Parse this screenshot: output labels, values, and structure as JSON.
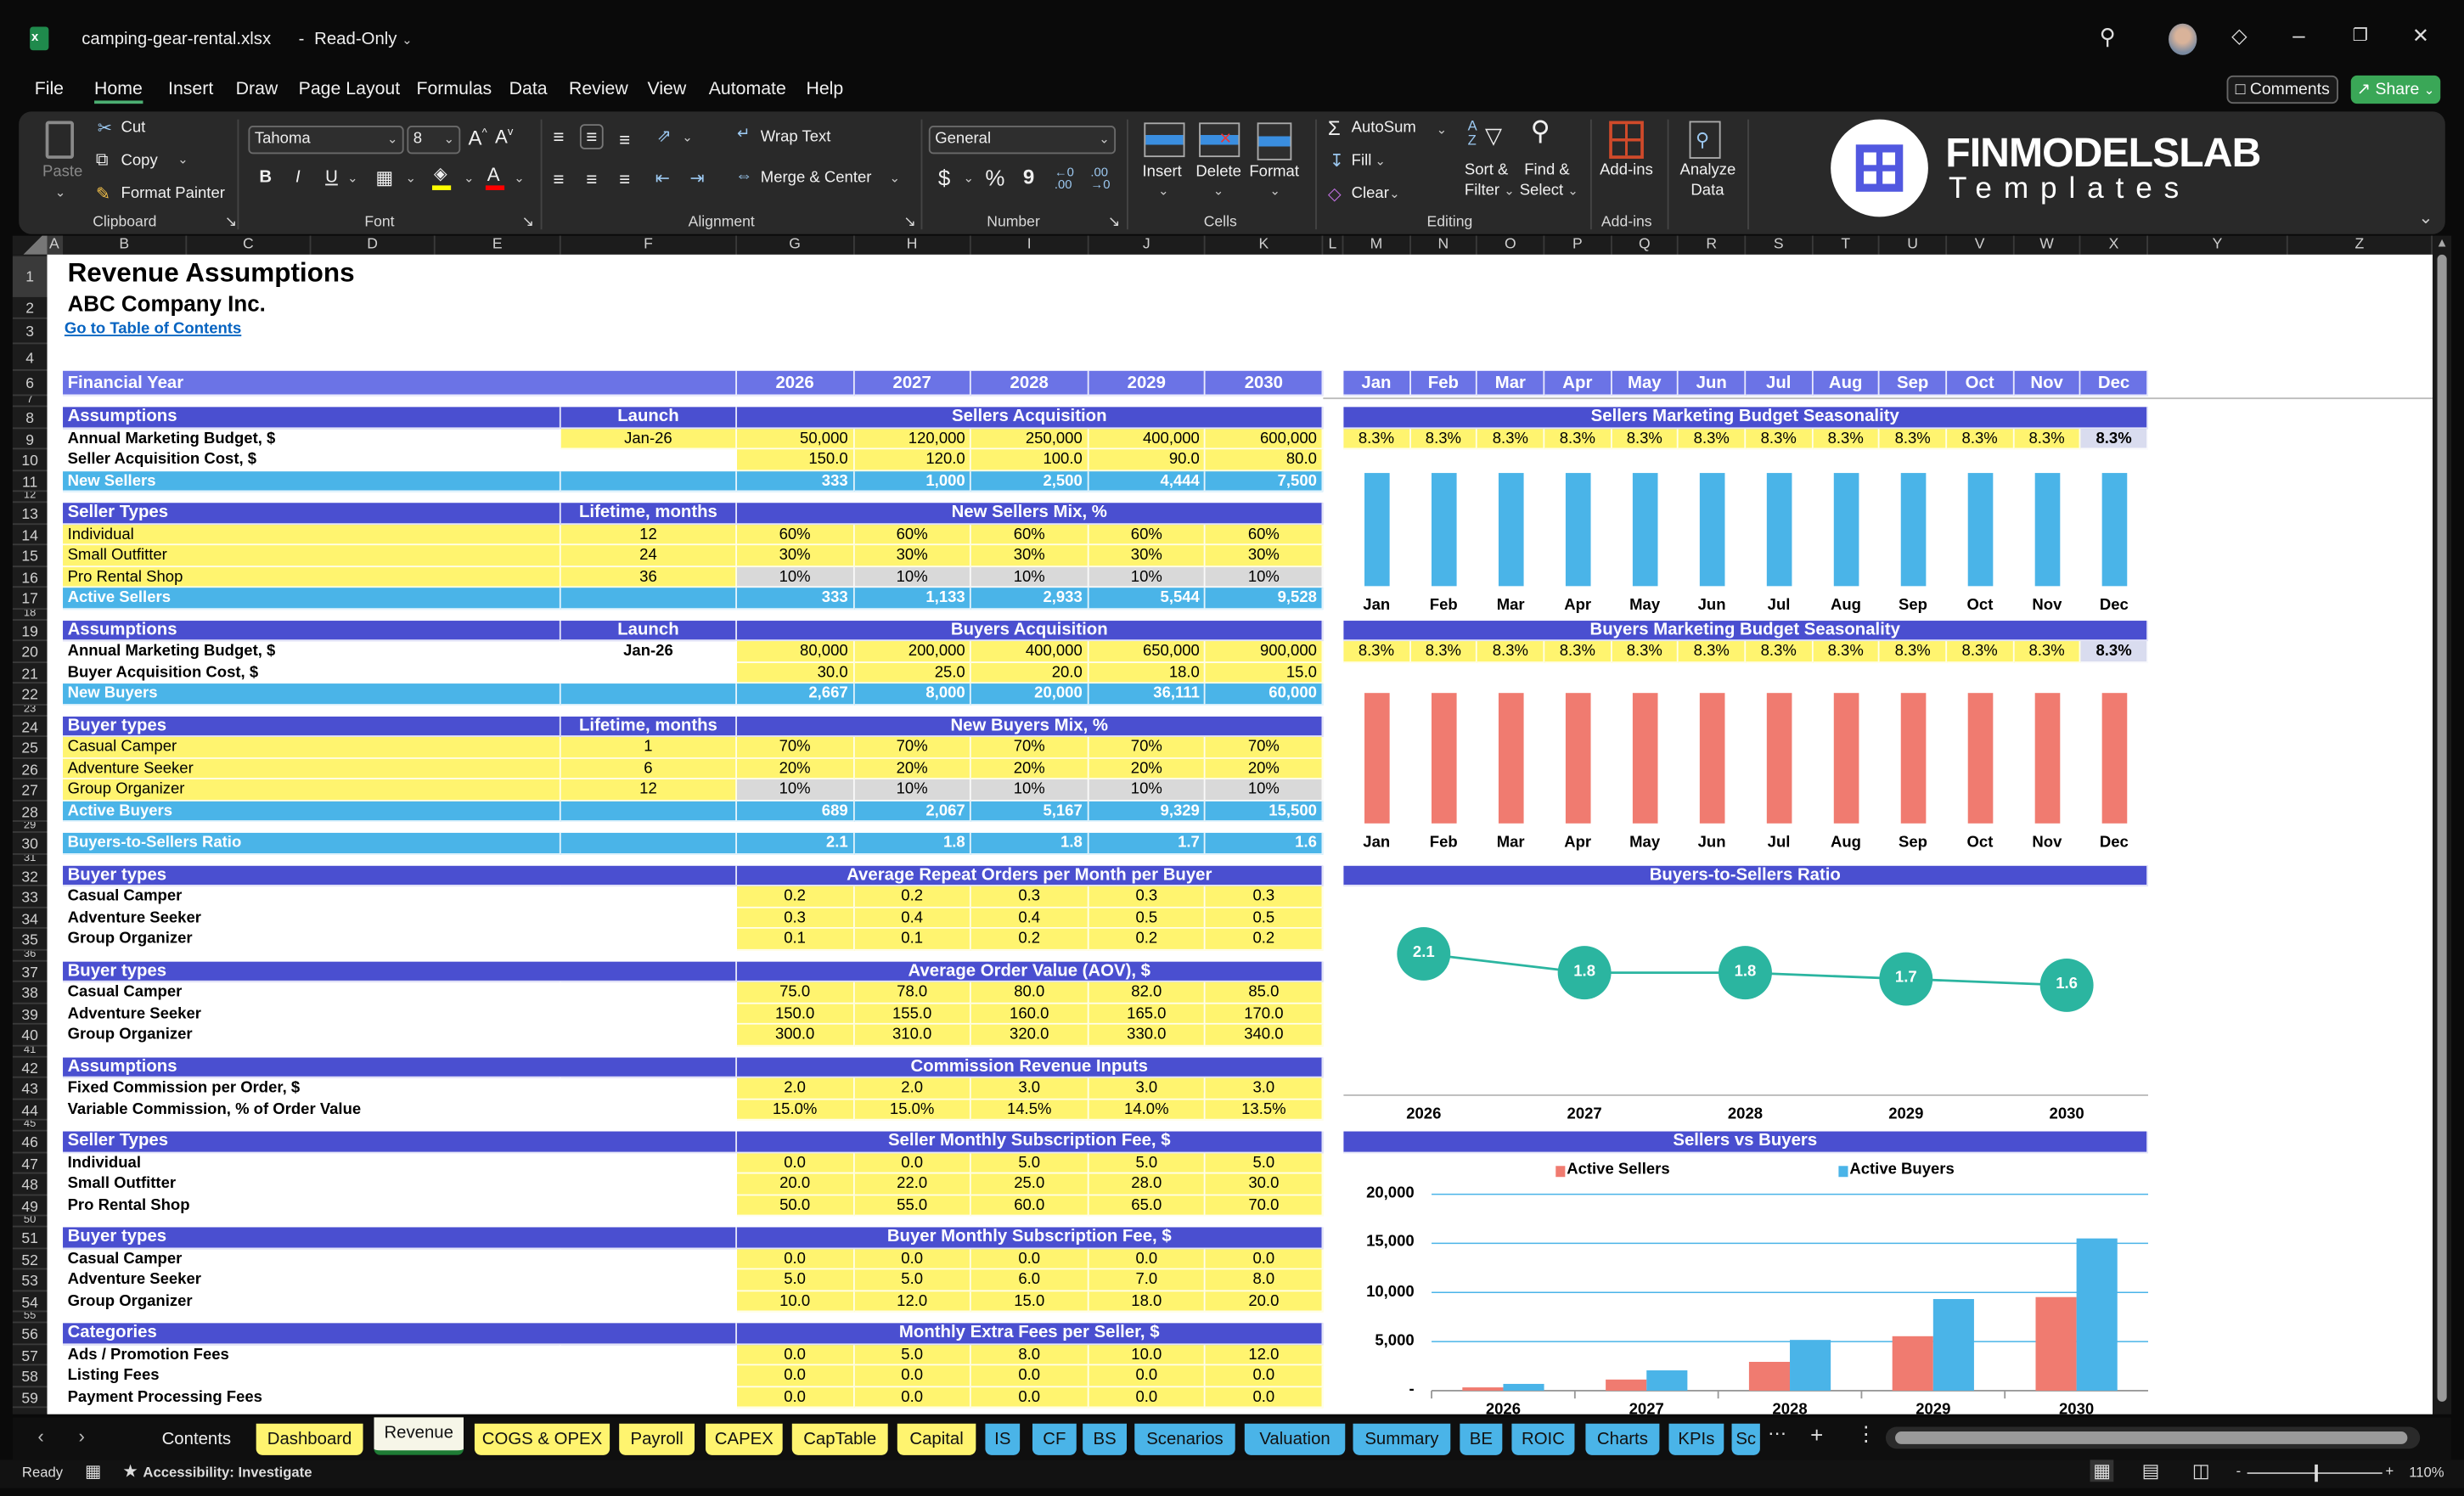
{
  "title_bar": {
    "file_name": "camping-gear-rental.xlsx",
    "separator": "-",
    "mode": "Read-Only"
  },
  "menu": [
    "File",
    "Home",
    "Insert",
    "Draw",
    "Page Layout",
    "Formulas",
    "Data",
    "Review",
    "View",
    "Automate",
    "Help"
  ],
  "active_menu": "Home",
  "actions": {
    "comments": "Comments",
    "share": "Share"
  },
  "ribbon": {
    "clipboard": {
      "paste": "Paste",
      "cut": "Cut",
      "copy": "Copy",
      "format_painter": "Format Painter",
      "group": "Clipboard"
    },
    "font": {
      "name": "Tahoma",
      "size": "8",
      "bold": "B",
      "italic": "I",
      "underline": "U",
      "group": "Font",
      "fill_color": "#ffff00",
      "font_color": "#ff0000"
    },
    "alignment": {
      "wrap_text": "Wrap Text",
      "merge_center": "Merge & Center",
      "group": "Alignment"
    },
    "number": {
      "format": "General",
      "currency": "$",
      "percent": "%",
      "comma": "9",
      "group": "Number"
    },
    "cells": {
      "insert": "Insert",
      "delete": "Delete",
      "format": "Format",
      "group": "Cells"
    },
    "editing": {
      "autosum": "AutoSum",
      "fill": "Fill",
      "clear": "Clear",
      "sort_filter_1": "Sort &",
      "sort_filter_2": "Filter",
      "find_select_1": "Find &",
      "find_select_2": "Select",
      "group": "Editing"
    },
    "addins": {
      "label": "Add-ins",
      "group": "Add-ins"
    },
    "analyze": {
      "line1": "Analyze",
      "line2": "Data"
    },
    "logo": {
      "brand": "FINMODELSLAB",
      "sub": "Templates"
    }
  },
  "columns": [
    "A",
    "B",
    "C",
    "D",
    "E",
    "F",
    "G",
    "H",
    "I",
    "J",
    "K",
    "L",
    "M",
    "N",
    "O",
    "P",
    "Q",
    "R",
    "S",
    "T",
    "U",
    "V",
    "W",
    "X",
    "Y",
    "Z"
  ],
  "row_numbers": [
    1,
    2,
    3,
    4,
    6,
    7,
    8,
    9,
    10,
    11,
    12,
    13,
    14,
    15,
    16,
    17,
    18,
    19,
    20,
    21,
    22,
    23,
    24,
    25,
    26,
    27,
    28,
    29,
    30,
    31,
    32,
    33,
    34,
    35,
    36,
    37,
    38,
    39,
    40,
    41,
    42,
    43,
    44,
    45,
    46,
    47,
    48,
    49,
    50,
    51,
    52,
    53,
    54,
    55,
    56,
    57,
    58,
    59
  ],
  "sheet": {
    "title": "Revenue Assumptions",
    "company": "ABC Company Inc.",
    "toc_link": "Go to Table of Contents",
    "financial_year": {
      "label": "Financial Year",
      "years": [
        "2026",
        "2027",
        "2028",
        "2029",
        "2030"
      ]
    },
    "months": [
      "Jan",
      "Feb",
      "Mar",
      "Apr",
      "May",
      "Jun",
      "Jul",
      "Aug",
      "Sep",
      "Oct",
      "Nov",
      "Dec"
    ],
    "sections": [
      {
        "row": 8,
        "label": "Assumptions",
        "launch": "Launch",
        "title": "Sellers Acquisition",
        "rows": [
          {
            "kind": "launch_input",
            "label": "Annual Marketing Budget, $",
            "launch": "Jan-26",
            "values": [
              "50,000",
              "120,000",
              "250,000",
              "400,000",
              "600,000"
            ]
          },
          {
            "kind": "input",
            "label": "Seller Acquisition Cost, $",
            "values": [
              "150.0",
              "120.0",
              "100.0",
              "90.0",
              "80.0"
            ]
          },
          {
            "kind": "total",
            "label": "New Sellers",
            "values": [
              "333",
              "1,000",
              "2,500",
              "4,444",
              "7,500"
            ]
          }
        ]
      },
      {
        "row": 13,
        "label": "Seller Types",
        "launch": "Lifetime, months",
        "title": "New Sellers Mix, %",
        "rows": [
          {
            "kind": "mix",
            "label": "Individual",
            "launch": "12",
            "values": [
              "60%",
              "60%",
              "60%",
              "60%",
              "60%"
            ]
          },
          {
            "kind": "mix",
            "label": "Small Outfitter",
            "launch": "24",
            "values": [
              "30%",
              "30%",
              "30%",
              "30%",
              "30%"
            ]
          },
          {
            "kind": "mix_grey",
            "label": "Pro Rental Shop",
            "launch": "36",
            "values": [
              "10%",
              "10%",
              "10%",
              "10%",
              "10%"
            ]
          },
          {
            "kind": "total",
            "label": "Active Sellers",
            "values": [
              "333",
              "1,133",
              "2,933",
              "5,544",
              "9,528"
            ]
          }
        ]
      },
      {
        "row": 19,
        "label": "Assumptions",
        "launch": "Launch",
        "title": "Buyers Acquisition",
        "rows": [
          {
            "kind": "launch_fixed",
            "label": "Annual Marketing Budget, $",
            "launch": "Jan-26",
            "values": [
              "80,000",
              "200,000",
              "400,000",
              "650,000",
              "900,000"
            ]
          },
          {
            "kind": "input",
            "label": "Buyer Acquisition Cost, $",
            "values": [
              "30.0",
              "25.0",
              "20.0",
              "18.0",
              "15.0"
            ]
          },
          {
            "kind": "total",
            "label": "New Buyers",
            "values": [
              "2,667",
              "8,000",
              "20,000",
              "36,111",
              "60,000"
            ]
          }
        ]
      },
      {
        "row": 24,
        "label": "Buyer types",
        "launch": "Lifetime, months",
        "title": "New Buyers Mix, %",
        "rows": [
          {
            "kind": "mix",
            "label": "Casual Camper",
            "launch": "1",
            "values": [
              "70%",
              "70%",
              "70%",
              "70%",
              "70%"
            ]
          },
          {
            "kind": "mix",
            "label": "Adventure Seeker",
            "launch": "6",
            "values": [
              "20%",
              "20%",
              "20%",
              "20%",
              "20%"
            ]
          },
          {
            "kind": "mix_grey",
            "label": "Group Organizer",
            "launch": "12",
            "values": [
              "10%",
              "10%",
              "10%",
              "10%",
              "10%"
            ]
          },
          {
            "kind": "total",
            "label": "Active Buyers",
            "values": [
              "689",
              "2,067",
              "5,167",
              "9,329",
              "15,500"
            ]
          }
        ]
      },
      {
        "row": 29,
        "rows": [
          {
            "kind": "total",
            "label": "Buyers-to-Sellers Ratio",
            "values": [
              "2.1",
              "1.8",
              "1.8",
              "1.7",
              "1.6"
            ]
          }
        ]
      },
      {
        "row": 32,
        "label": "Buyer types",
        "title": "Average Repeat Orders per Month per Buyer",
        "rows": [
          {
            "kind": "input",
            "label": "Casual Camper",
            "values": [
              "0.2",
              "0.2",
              "0.3",
              "0.3",
              "0.3"
            ]
          },
          {
            "kind": "input",
            "label": "Adventure Seeker",
            "values": [
              "0.3",
              "0.4",
              "0.4",
              "0.5",
              "0.5"
            ]
          },
          {
            "kind": "input",
            "label": "Group Organizer",
            "values": [
              "0.1",
              "0.1",
              "0.2",
              "0.2",
              "0.2"
            ]
          }
        ]
      },
      {
        "row": 37,
        "label": "Buyer types",
        "title": "Average Order Value (AOV), $",
        "rows": [
          {
            "kind": "input",
            "label": "Casual Camper",
            "values": [
              "75.0",
              "78.0",
              "80.0",
              "82.0",
              "85.0"
            ]
          },
          {
            "kind": "input",
            "label": "Adventure Seeker",
            "values": [
              "150.0",
              "155.0",
              "160.0",
              "165.0",
              "170.0"
            ]
          },
          {
            "kind": "input",
            "label": "Group Organizer",
            "values": [
              "300.0",
              "310.0",
              "320.0",
              "330.0",
              "340.0"
            ]
          }
        ]
      },
      {
        "row": 42,
        "label": "Assumptions",
        "title": "Commission Revenue Inputs",
        "rows": [
          {
            "kind": "input",
            "label": "Fixed Commission per Order, $",
            "values": [
              "2.0",
              "2.0",
              "3.0",
              "3.0",
              "3.0"
            ]
          },
          {
            "kind": "input",
            "label": "Variable Commission, % of Order Value",
            "values": [
              "15.0%",
              "15.0%",
              "14.5%",
              "14.0%",
              "13.5%"
            ]
          }
        ]
      },
      {
        "row": 46,
        "label": "Seller Types",
        "title": "Seller Monthly Subscription Fee, $",
        "rows": [
          {
            "kind": "input",
            "label": "Individual",
            "values": [
              "0.0",
              "0.0",
              "5.0",
              "5.0",
              "5.0"
            ]
          },
          {
            "kind": "input",
            "label": "Small Outfitter",
            "values": [
              "20.0",
              "22.0",
              "25.0",
              "28.0",
              "30.0"
            ]
          },
          {
            "kind": "input",
            "label": "Pro Rental Shop",
            "values": [
              "50.0",
              "55.0",
              "60.0",
              "65.0",
              "70.0"
            ]
          }
        ]
      },
      {
        "row": 51,
        "label": "Buyer types",
        "title": "Buyer Monthly Subscription Fee, $",
        "rows": [
          {
            "kind": "input",
            "label": "Casual Camper",
            "values": [
              "0.0",
              "0.0",
              "0.0",
              "0.0",
              "0.0"
            ]
          },
          {
            "kind": "input",
            "label": "Adventure Seeker",
            "values": [
              "5.0",
              "5.0",
              "6.0",
              "7.0",
              "8.0"
            ]
          },
          {
            "kind": "input",
            "label": "Group Organizer",
            "values": [
              "10.0",
              "12.0",
              "15.0",
              "18.0",
              "20.0"
            ]
          }
        ]
      },
      {
        "row": 56,
        "label": "Categories",
        "title": "Monthly Extra Fees per Seller, $",
        "rows": [
          {
            "kind": "input",
            "label": "Ads / Promotion Fees",
            "values": [
              "0.0",
              "5.0",
              "8.0",
              "10.0",
              "12.0"
            ]
          },
          {
            "kind": "input",
            "label": "Listing Fees",
            "values": [
              "0.0",
              "0.0",
              "0.0",
              "0.0",
              "0.0"
            ]
          },
          {
            "kind": "input",
            "label": "Payment Processing Fees",
            "values": [
              "0.0",
              "0.0",
              "0.0",
              "0.0",
              "0.0"
            ]
          }
        ]
      }
    ]
  },
  "chart_data": [
    {
      "type": "bar",
      "title": "Sellers Marketing Budget Seasonality",
      "categories": [
        "Jan",
        "Feb",
        "Mar",
        "Apr",
        "May",
        "Jun",
        "Jul",
        "Aug",
        "Sep",
        "Oct",
        "Nov",
        "Dec"
      ],
      "value_labels": [
        "8.3%",
        "8.3%",
        "8.3%",
        "8.3%",
        "8.3%",
        "8.3%",
        "8.3%",
        "8.3%",
        "8.3%",
        "8.3%",
        "8.3%",
        "8.3%"
      ],
      "values": [
        8.3,
        8.3,
        8.3,
        8.3,
        8.3,
        8.3,
        8.3,
        8.3,
        8.3,
        8.3,
        8.3,
        8.3
      ],
      "color": "#4ab4e8",
      "ylim": [
        0,
        8.3
      ]
    },
    {
      "type": "bar",
      "title": "Buyers Marketing Budget Seasonality",
      "categories": [
        "Jan",
        "Feb",
        "Mar",
        "Apr",
        "May",
        "Jun",
        "Jul",
        "Aug",
        "Sep",
        "Oct",
        "Nov",
        "Dec"
      ],
      "value_labels": [
        "8.3%",
        "8.3%",
        "8.3%",
        "8.3%",
        "8.3%",
        "8.3%",
        "8.3%",
        "8.3%",
        "8.3%",
        "8.3%",
        "8.3%",
        "8.3%"
      ],
      "values": [
        8.3,
        8.3,
        8.3,
        8.3,
        8.3,
        8.3,
        8.3,
        8.3,
        8.3,
        8.3,
        8.3,
        8.3
      ],
      "color": "#f07b70",
      "ylim": [
        0,
        8.3
      ]
    },
    {
      "type": "line",
      "title": "Buyers-to-Sellers Ratio",
      "categories": [
        "2026",
        "2027",
        "2028",
        "2029",
        "2030"
      ],
      "values": [
        2.1,
        1.8,
        1.8,
        1.7,
        1.6
      ],
      "value_labels": [
        "2.1",
        "1.8",
        "1.8",
        "1.7",
        "1.6"
      ],
      "color": "#2bb5a0",
      "ylim": [
        0,
        3
      ]
    },
    {
      "type": "bar",
      "title": "Sellers vs Buyers",
      "categories": [
        "2026",
        "2027",
        "2028",
        "2029",
        "2030"
      ],
      "series": [
        {
          "name": "Active Sellers",
          "values": [
            333,
            1133,
            2933,
            5544,
            9528
          ],
          "color": "#f07b70"
        },
        {
          "name": "Active Buyers",
          "values": [
            689,
            2067,
            5167,
            9329,
            15500
          ],
          "color": "#4ab4e8"
        }
      ],
      "yticks": [
        "-",
        "5,000",
        "10,000",
        "15,000",
        "20,000"
      ],
      "ylim": [
        0,
        20000
      ],
      "legend": "top",
      "grid": true
    }
  ],
  "tabs": [
    {
      "label": "Contents",
      "color": "none"
    },
    {
      "label": "Dashboard",
      "color": "yellow"
    },
    {
      "label": "Revenue",
      "color": "active"
    },
    {
      "label": "COGS & OPEX",
      "color": "yellow"
    },
    {
      "label": "Payroll",
      "color": "yellow"
    },
    {
      "label": "CAPEX",
      "color": "yellow"
    },
    {
      "label": "CapTable",
      "color": "yellow"
    },
    {
      "label": "Capital",
      "color": "yellow"
    },
    {
      "label": "IS",
      "color": "blue"
    },
    {
      "label": "CF",
      "color": "blue"
    },
    {
      "label": "BS",
      "color": "blue"
    },
    {
      "label": "Scenarios",
      "color": "blue"
    },
    {
      "label": "Valuation",
      "color": "blue"
    },
    {
      "label": "Summary",
      "color": "blue"
    },
    {
      "label": "BE",
      "color": "blue"
    },
    {
      "label": "ROIC",
      "color": "blue"
    },
    {
      "label": "Charts",
      "color": "blue"
    },
    {
      "label": "KPIs",
      "color": "blue"
    },
    {
      "label": "Sc",
      "color": "blue"
    }
  ],
  "status": {
    "ready": "Ready",
    "accessibility": "Accessibility: Investigate",
    "zoom": "110%",
    "zoom_minus": "-",
    "zoom_plus": "+"
  }
}
